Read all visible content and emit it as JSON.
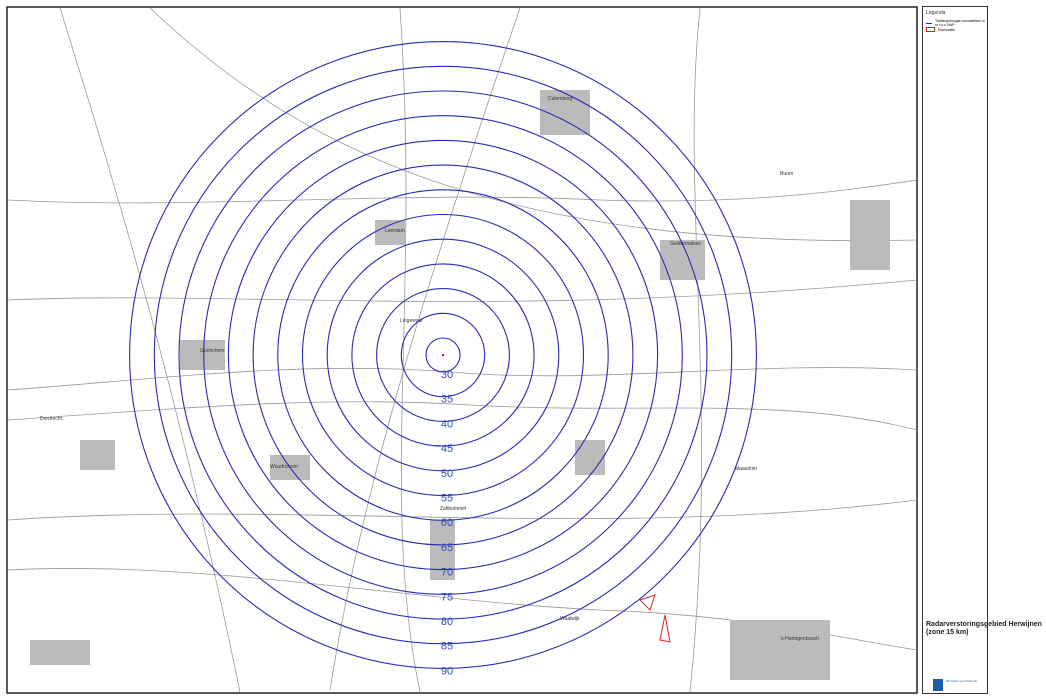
{
  "legend": {
    "title": "Legenda",
    "items": [
      "Toetsingshoogte bouwwerken in m t.o.v. NAP",
      "Planlocatie"
    ]
  },
  "title_block": {
    "title": "Radarverstoringsgebied Herwijnen (zone 15 km)",
    "organisation": "Ministerie van Defensie"
  },
  "map": {
    "contours": [
      30,
      35,
      40,
      45,
      50,
      55,
      60,
      65,
      70,
      75,
      80,
      85,
      90
    ],
    "places": [
      "Gorinchem",
      "Leerdam",
      "Culemborg",
      "Geldermalsen",
      "Zaltbommel",
      "Woudrichem",
      "Dordrecht",
      "Maasdriel",
      "'s-Hertogenbosch",
      "Buren",
      "Lingewaal",
      "Waalwijk"
    ]
  }
}
